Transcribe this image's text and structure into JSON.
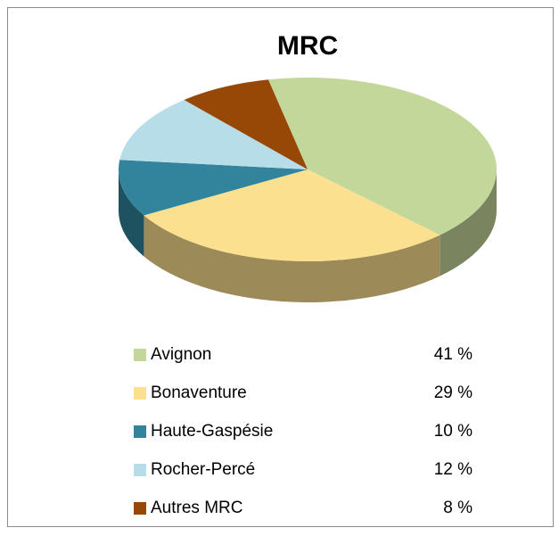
{
  "chart_data": {
    "type": "pie3d",
    "title": "MRC",
    "categories": [
      "Avignon",
      "Bonaventure",
      "Haute-Gaspésie",
      "Rocher-Percé",
      "Autres MRC"
    ],
    "values": [
      41,
      29,
      10,
      12,
      8
    ],
    "value_labels": [
      "41 %",
      "29 %",
      "10 %",
      "12 %",
      "8 %"
    ],
    "colors": [
      "#c4d79b",
      "#fbe08f",
      "#31849b",
      "#b7dee8",
      "#974706"
    ],
    "legend": "bottom"
  }
}
